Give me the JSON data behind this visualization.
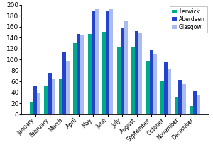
{
  "months": [
    "January",
    "February",
    "March",
    "April",
    "May",
    "June",
    "July",
    "August",
    "September",
    "October",
    "November",
    "December"
  ],
  "lerwick": [
    22,
    53,
    65,
    130,
    147,
    151,
    123,
    124,
    96,
    62,
    32,
    15
  ],
  "aberdeen": [
    51,
    75,
    113,
    147,
    188,
    190,
    158,
    152,
    117,
    95,
    63,
    43
  ],
  "glasgow": [
    40,
    65,
    98,
    146,
    192,
    192,
    170,
    150,
    110,
    83,
    55,
    35
  ],
  "colors": {
    "lerwick": "#00aa88",
    "aberdeen": "#2244cc",
    "glasgow": "#aabbee"
  },
  "legend_labels": [
    "Lerwick",
    "Aberdeen",
    "Glasgow"
  ],
  "ylim": [
    0,
    200
  ],
  "yticks": [
    0,
    20,
    40,
    60,
    80,
    100,
    120,
    140,
    160,
    180,
    200
  ],
  "background_color": "#ffffff"
}
